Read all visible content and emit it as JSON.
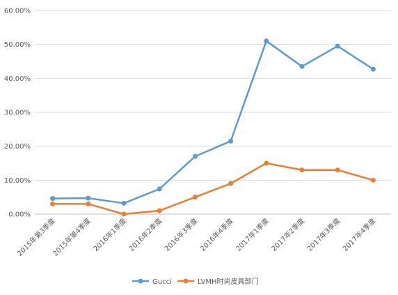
{
  "chart_data": {
    "type": "line",
    "categories": [
      "2015年第3季度",
      "2015年第4季度",
      "2016年1季度",
      "2016年2季度",
      "2016年3季度",
      "2016年4季度",
      "2017年1季度",
      "2017年2季度",
      "2017年3季度",
      "2017年4季度"
    ],
    "series": [
      {
        "name": "Gucci",
        "color": "#5b9bd5",
        "values": [
          4.6,
          4.7,
          3.2,
          7.4,
          17.0,
          21.5,
          51.0,
          43.5,
          49.5,
          42.7
        ]
      },
      {
        "name": "LVMH时尚皮具部门",
        "color": "#ed7d31",
        "values": [
          3.0,
          3.0,
          0.0,
          1.0,
          5.0,
          9.0,
          15.0,
          13.0,
          13.0,
          10.0
        ]
      }
    ],
    "y_ticks": [
      "0.00%",
      "10.00%",
      "20.00%",
      "30.00%",
      "40.00%",
      "50.00%",
      "60.00%"
    ],
    "ylim": [
      0,
      60
    ],
    "grid": true,
    "legend_position": "bottom"
  }
}
